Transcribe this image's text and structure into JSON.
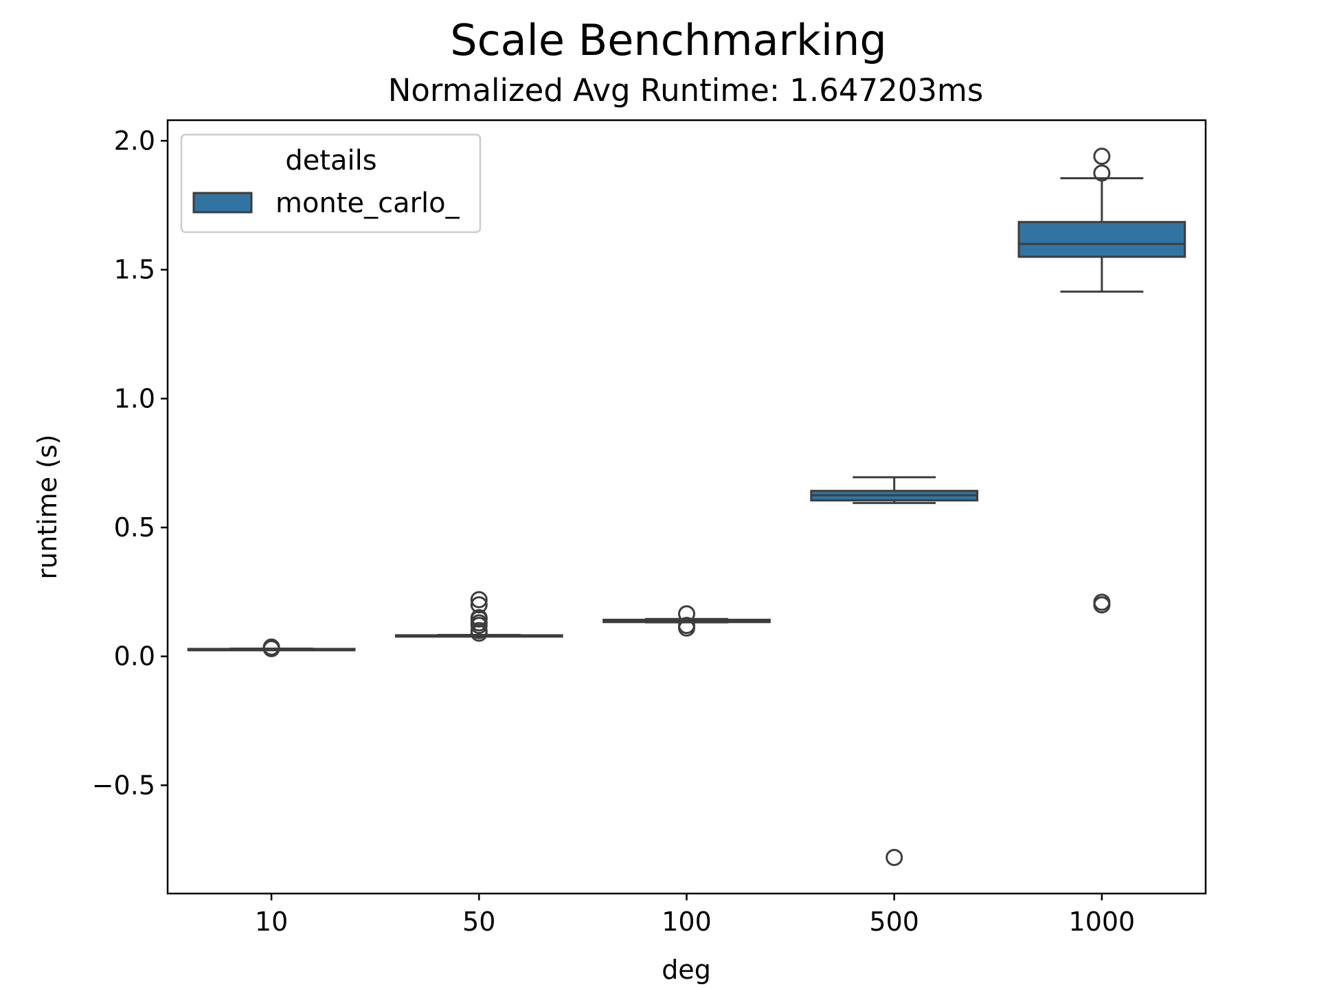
{
  "chart_data": {
    "type": "box",
    "title": "Scale Benchmarking",
    "subtitle": "Normalized Avg Runtime: 1.647203ms",
    "xlabel": "deg",
    "ylabel": "runtime (s)",
    "ylim": [
      -0.92,
      2.08
    ],
    "yticks": [
      -0.5,
      0.0,
      0.5,
      1.0,
      1.5,
      2.0
    ],
    "ytick_labels": [
      "−0.5",
      "0.0",
      "0.5",
      "1.0",
      "1.5",
      "2.0"
    ],
    "categories": [
      "10",
      "50",
      "100",
      "500",
      "1000"
    ],
    "legend": {
      "title": "details",
      "position": "upper-left",
      "entries": [
        "monte_carlo_"
      ]
    },
    "colors": {
      "box_fill": "#3274a1",
      "line": "#3d3d3d"
    },
    "grid": false,
    "series": [
      {
        "name": "monte_carlo_",
        "boxes": [
          {
            "category": "10",
            "whisker_low": 0.026,
            "q1": 0.027,
            "median": 0.028,
            "q3": 0.029,
            "whisker_high": 0.03,
            "outliers": [
              0.03,
              0.033,
              0.036
            ]
          },
          {
            "category": "50",
            "whisker_low": 0.078,
            "q1": 0.079,
            "median": 0.08,
            "q3": 0.082,
            "whisker_high": 0.083,
            "outliers": [
              0.09,
              0.1,
              0.12,
              0.13,
              0.145,
              0.15,
              0.2,
              0.22
            ]
          },
          {
            "category": "100",
            "whisker_low": 0.132,
            "q1": 0.133,
            "median": 0.136,
            "q3": 0.142,
            "whisker_high": 0.145,
            "outliers": [
              0.11,
              0.12,
              0.165
            ]
          },
          {
            "category": "500",
            "whisker_low": 0.595,
            "q1": 0.605,
            "median": 0.625,
            "q3": 0.642,
            "whisker_high": 0.695,
            "outliers": [
              -0.78
            ]
          },
          {
            "category": "1000",
            "whisker_low": 1.415,
            "q1": 1.55,
            "median": 1.6,
            "q3": 1.685,
            "whisker_high": 1.855,
            "outliers": [
              0.2,
              0.21,
              1.875,
              1.94
            ]
          }
        ]
      }
    ]
  }
}
